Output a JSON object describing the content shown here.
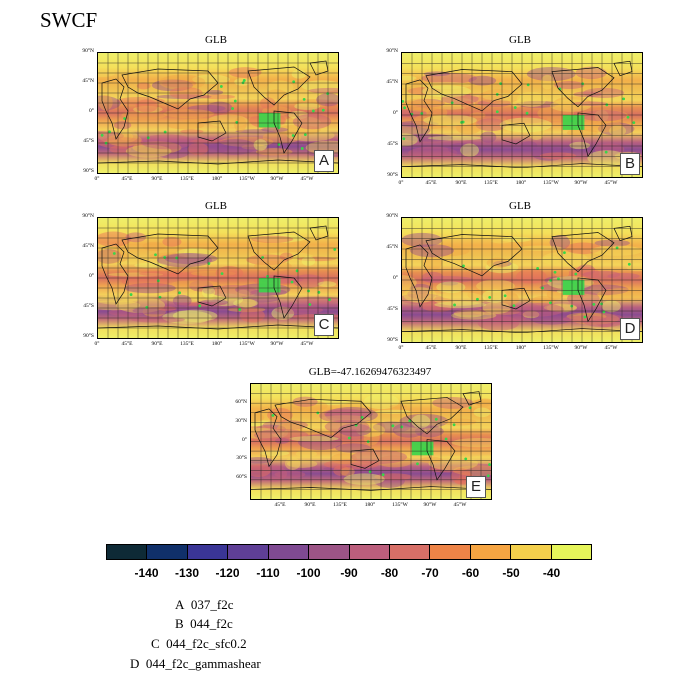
{
  "title": "SWCF",
  "panels": [
    {
      "id": "A",
      "title": "GLB",
      "letter": "A"
    },
    {
      "id": "B",
      "title": "GLB",
      "letter": "B"
    },
    {
      "id": "C",
      "title": "GLB",
      "letter": "C"
    },
    {
      "id": "D",
      "title": "GLB",
      "letter": "D"
    },
    {
      "id": "E",
      "title": "GLB=-47.16269476323497",
      "letter": "E"
    }
  ],
  "axes": {
    "lat_ticks_small": [
      "90°N",
      "45°N",
      "0°",
      "45°S",
      "90°S"
    ],
    "lon_ticks_small": [
      "0°",
      "45°E",
      "90°E",
      "135°E",
      "180°",
      "135°W",
      "90°W",
      "45°W"
    ],
    "lat_ticks_large": [
      "60°N",
      "30°N",
      "0°",
      "30°S",
      "60°S"
    ],
    "lon_ticks_large": [
      "45°E",
      "90°E",
      "135°E",
      "180°",
      "135°W",
      "90°W",
      "45°W"
    ]
  },
  "colorbar": {
    "colors": [
      "#0e2a36",
      "#10306a",
      "#3a3596",
      "#5f3f96",
      "#7f4a92",
      "#9c5486",
      "#bb5e7c",
      "#d76f67",
      "#ee8447",
      "#f6a542",
      "#f4d04c",
      "#e6f55a"
    ],
    "labels": [
      "-140",
      "-130",
      "-120",
      "-110",
      "-100",
      "-90",
      "-80",
      "-70",
      "-60",
      "-50",
      "-40"
    ]
  },
  "legend": [
    {
      "key": "A",
      "name": "037_f2c"
    },
    {
      "key": "B",
      "name": "044_f2c"
    },
    {
      "key": "C",
      "name": "044_f2c_sfc0.2"
    },
    {
      "key": "D",
      "name": "044_f2c_gammashear"
    }
  ]
}
